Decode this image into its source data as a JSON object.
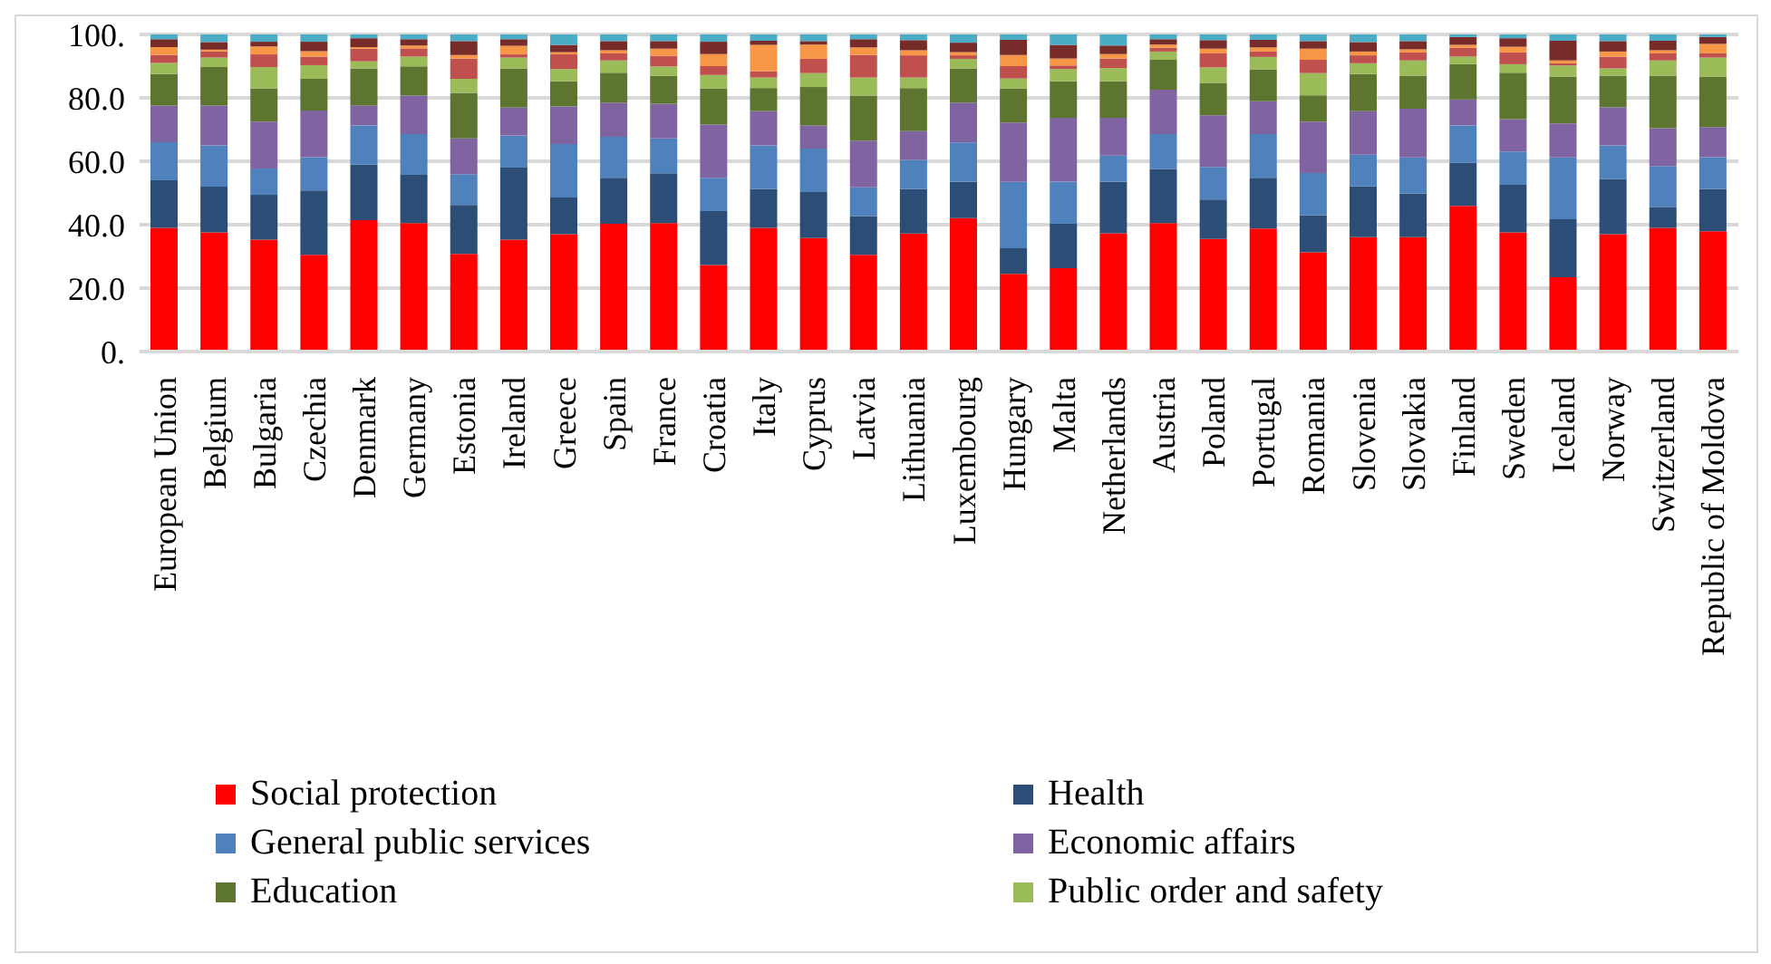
{
  "chart_data": {
    "type": "bar",
    "stacked": true,
    "categories": [
      "European Union",
      "Belgium",
      "Bulgaria",
      "Czechia",
      "Denmark",
      "Germany",
      "Estonia",
      "Ireland",
      "Greece",
      "Spain",
      "France",
      "Croatia",
      "Italy",
      "Cyprus",
      "Latvia",
      "Lithuania",
      "Luxembourg",
      "Hungary",
      "Malta",
      "Netherlands",
      "Austria",
      "Poland",
      "Portugal",
      "Romania",
      "Slovenia",
      "Slovakia",
      "Finland",
      "Sweden",
      "Iceland",
      "Norway",
      "Switzerland",
      "Republic of Moldova"
    ],
    "series": [
      {
        "name": "Social protection",
        "color": "#ff0000",
        "values": [
          39,
          37.6,
          35.3,
          30.5,
          41.4,
          40.5,
          30.8,
          35.3,
          37,
          40.3,
          40.5,
          27.3,
          39,
          35.8,
          30.5,
          37.2,
          42.1,
          24.5,
          26.3,
          37.3,
          40.5,
          35.5,
          38.8,
          31.3,
          36.1,
          36.1,
          45.9,
          37.6,
          23.4,
          37,
          39,
          37.9
        ]
      },
      {
        "name": "Health",
        "color": "#2c4d75",
        "values": [
          15,
          14.4,
          14.1,
          20.3,
          17.5,
          15.2,
          15.4,
          22.7,
          11.6,
          14.5,
          15.7,
          17,
          12.2,
          14.5,
          12.2,
          14,
          11.4,
          8.1,
          14,
          16.2,
          17.1,
          12.4,
          16,
          11.7,
          16,
          13.7,
          13.6,
          15,
          18.3,
          17.4,
          6.6,
          13.3
        ]
      },
      {
        "name": "General public services",
        "color": "#4f81bd",
        "values": [
          12,
          13,
          8.3,
          10.5,
          12.4,
          12.9,
          9.7,
          10.1,
          16.8,
          12.9,
          11,
          10.5,
          13.8,
          13.7,
          9.1,
          9.2,
          12.4,
          20.9,
          13.3,
          8.3,
          11,
          10.3,
          13.8,
          13.3,
          10,
          11.4,
          11.8,
          10.5,
          19.5,
          10.6,
          12.9,
          10.1
        ]
      },
      {
        "name": "Economic affairs",
        "color": "#8064a2",
        "values": [
          11.6,
          12.6,
          14.8,
          14.7,
          6.3,
          12.1,
          11.3,
          8.8,
          11.9,
          10.8,
          10.9,
          16.8,
          10.8,
          7.3,
          14.7,
          9.1,
          12.6,
          18.7,
          20.1,
          11.9,
          14,
          16.3,
          10.3,
          16.2,
          13.7,
          15.4,
          8.2,
          10.2,
          10.7,
          12,
          11.9,
          9.5
        ]
      },
      {
        "name": "Education",
        "color": "#5e7530",
        "values": [
          9.9,
          12.1,
          10.5,
          10,
          11.7,
          9.2,
          14.4,
          12.4,
          7.9,
          9.4,
          8.8,
          11.3,
          7.3,
          12.1,
          14.2,
          13.6,
          10.8,
          10.7,
          11.5,
          11.5,
          9.4,
          10.2,
          10.1,
          8.3,
          11.7,
          10.4,
          11.1,
          14.6,
          14.8,
          10,
          16.6,
          15.9
        ]
      },
      {
        "name": "Public order and safety",
        "color": "#9bbb59",
        "values": [
          3.5,
          3,
          6.7,
          4.3,
          2.2,
          3.1,
          4.4,
          3.4,
          3.9,
          3.9,
          3,
          4.3,
          3.3,
          4.4,
          5.7,
          3.3,
          3,
          3.2,
          3.9,
          4.2,
          2.6,
          4.9,
          3.9,
          7,
          3.4,
          4.8,
          2.4,
          2.7,
          3.5,
          2.3,
          4.8,
          6
        ]
      },
      {
        "color": "#c0504d",
        "values": [
          2.5,
          1.9,
          4,
          2.7,
          4,
          2.6,
          6.4,
          1,
          4.6,
          2.2,
          3.3,
          2.8,
          2,
          4.5,
          7.1,
          7,
          1.1,
          3.9,
          1.1,
          3,
          1.2,
          4.4,
          1.7,
          4.2,
          2.5,
          2.5,
          2.8,
          3.7,
          0.7,
          3.7,
          2.2,
          1.3
        ]
      },
      {
        "color": "#f79646",
        "values": [
          2.5,
          0.6,
          2.5,
          1.7,
          0.5,
          0.9,
          1.1,
          2.7,
          0.7,
          1,
          2.3,
          3.8,
          8.3,
          4.5,
          2.4,
          1.6,
          1,
          3.5,
          2.2,
          1.4,
          1,
          1.5,
          1.3,
          3.5,
          1.2,
          1,
          0.9,
          1.8,
          0.9,
          1.6,
          1,
          3
        ]
      },
      {
        "color": "#772c2a",
        "values": [
          2.5,
          2.4,
          1.5,
          3,
          2.8,
          2,
          4.4,
          2.1,
          2.3,
          2.9,
          2.4,
          3.9,
          1.3,
          1.1,
          2.6,
          3.2,
          3,
          4.8,
          4.3,
          2.7,
          1.7,
          2.7,
          2.4,
          2.4,
          3,
          2.6,
          2.5,
          2.7,
          6.2,
          3.3,
          3,
          2.2
        ]
      },
      {
        "color": "#4bacc6",
        "values": [
          1.5,
          2.4,
          2.3,
          2.3,
          1.2,
          1.5,
          2.1,
          1.5,
          3.3,
          2.1,
          2.1,
          2.3,
          2,
          2.1,
          1.5,
          1.8,
          2.6,
          1.7,
          3.3,
          3.5,
          1.5,
          1.8,
          1.7,
          2.1,
          2.4,
          2.1,
          0.8,
          1.2,
          2,
          2.1,
          2,
          0.8
        ]
      }
    ],
    "ylim": [
      0,
      100
    ],
    "yticks": [
      {
        "value": 0,
        "label": "0."
      },
      {
        "value": 20,
        "label": "20.0"
      },
      {
        "value": 40,
        "label": "40.0"
      },
      {
        "value": 60,
        "label": "60.0"
      },
      {
        "value": 80,
        "label": "80.0"
      },
      {
        "value": 100,
        "label": "100."
      }
    ],
    "grid": "y",
    "legend": "bottom"
  }
}
